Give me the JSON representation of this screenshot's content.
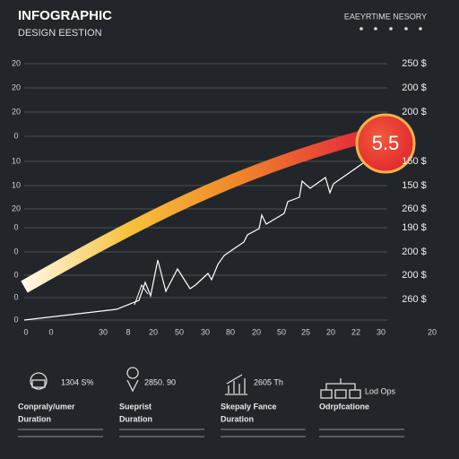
{
  "header": {
    "title": "INFOGRAPHIC",
    "subtitle": "DESIGN EESTION",
    "tagline": "EAEYRTIME NESORY"
  },
  "left_axis_labels": [
    "20",
    "20",
    "20",
    "0",
    "10",
    "10",
    "20",
    "0",
    "0",
    "0",
    "0",
    "0"
  ],
  "right_axis_labels": [
    "250 $",
    "200 $",
    "200 $",
    "150 $",
    "150 $",
    "260 $",
    "190 $",
    "200 $",
    "200 $",
    "260 $"
  ],
  "badge": "5.5",
  "x_axis_labels": [
    "0",
    "0",
    "30",
    "8",
    "20",
    "50",
    "30",
    "80",
    "20",
    "50",
    "25",
    "20",
    "22",
    "30",
    "20"
  ],
  "items": [
    {
      "figure": "1304 S%",
      "label": "Conpraly/umer",
      "sublabel": "Duration"
    },
    {
      "figure": "2850. 90",
      "label": "Sueprist",
      "sublabel": "Duration"
    },
    {
      "figure": "2605 Th",
      "label": "Skepaly Fance",
      "sublabel": "Duration"
    },
    {
      "figure": "Lod Ops",
      "label": "Odrpfcatione"
    }
  ]
}
